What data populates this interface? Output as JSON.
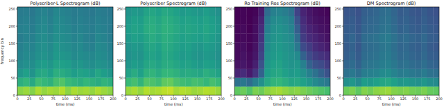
{
  "chart_data": [
    {
      "type": "heatmap",
      "title": "Polyscriber-L Spectrogram (dB)",
      "xlabel": "time (ms)",
      "ylabel": "frequency bin",
      "xlim": [
        0,
        200
      ],
      "ylim": [
        0,
        256
      ],
      "xticks": [
        0,
        25,
        50,
        75,
        100,
        125,
        150,
        175,
        200
      ],
      "yticks": [
        0,
        50,
        100,
        150,
        200,
        250
      ],
      "zlim": [
        -80,
        0
      ],
      "cells": [
        [
          -14,
          -12,
          -15,
          -10,
          -13,
          -11,
          -12,
          -9,
          -14,
          -10,
          -12,
          -11,
          -13,
          -10,
          -12,
          -14
        ],
        [
          -30,
          -27,
          -32,
          -25,
          -27,
          -29,
          -24,
          -22,
          -26,
          -28,
          -30,
          -27,
          -29,
          -31,
          -28,
          -30
        ],
        [
          -38,
          -35,
          -39,
          -33,
          -32,
          -35,
          -30,
          -31,
          -33,
          -36,
          -34,
          -35,
          -37,
          -33,
          -36,
          -38
        ],
        [
          -42,
          -40,
          -41,
          -37,
          -36,
          -38,
          -34,
          -35,
          -36,
          -39,
          -38,
          -40,
          -41,
          -39,
          -40,
          -42
        ],
        [
          -44,
          -42,
          -43,
          -40,
          -39,
          -41,
          -37,
          -38,
          -39,
          -42,
          -41,
          -42,
          -43,
          -41,
          -42,
          -44
        ],
        [
          -45,
          -43,
          -44,
          -41,
          -40,
          -42,
          -38,
          -40,
          -41,
          -43,
          -42,
          -44,
          -45,
          -42,
          -43,
          -45
        ],
        [
          -46,
          -44,
          -45,
          -42,
          -41,
          -43,
          -40,
          -41,
          -42,
          -44,
          -43,
          -45,
          -46,
          -43,
          -44,
          -46
        ],
        [
          -45,
          -44,
          -46,
          -43,
          -42,
          -44,
          -41,
          -42,
          -43,
          -45,
          -44,
          -45,
          -46,
          -44,
          -45,
          -47
        ],
        [
          -46,
          -45,
          -47,
          -44,
          -43,
          -45,
          -42,
          -43,
          -44,
          -46,
          -45,
          -46,
          -47,
          -45,
          -46,
          -47
        ],
        [
          -47,
          -46,
          -48,
          -45,
          -44,
          -46,
          -43,
          -44,
          -45,
          -47,
          -46,
          -47,
          -48,
          -46,
          -47,
          -48
        ]
      ]
    },
    {
      "type": "heatmap",
      "title": "Polyscriber Spectrogram (dB)",
      "xlabel": "time (ms)",
      "xlim": [
        0,
        200
      ],
      "ylim": [
        0,
        256
      ],
      "xticks": [
        0,
        25,
        50,
        75,
        100,
        125,
        150,
        175,
        200
      ],
      "yticks": [
        0,
        50,
        100,
        150,
        200,
        250
      ],
      "zlim": [
        -80,
        0
      ],
      "cells": [
        [
          -12,
          -10,
          -13,
          -9,
          -11,
          -10,
          -8,
          -7,
          -11,
          -9,
          -10,
          -12,
          -11,
          -9,
          -10,
          -12
        ],
        [
          -26,
          -24,
          -28,
          -22,
          -23,
          -25,
          -20,
          -19,
          -23,
          -25,
          -26,
          -24,
          -25,
          -27,
          -24,
          -26
        ],
        [
          -34,
          -31,
          -35,
          -29,
          -28,
          -31,
          -27,
          -27,
          -29,
          -32,
          -31,
          -32,
          -33,
          -30,
          -32,
          -34
        ],
        [
          -38,
          -36,
          -37,
          -33,
          -32,
          -34,
          -31,
          -31,
          -33,
          -35,
          -34,
          -36,
          -37,
          -35,
          -36,
          -38
        ],
        [
          -40,
          -38,
          -39,
          -35,
          -34,
          -36,
          -32,
          -33,
          -35,
          -37,
          -36,
          -38,
          -39,
          -37,
          -38,
          -40
        ],
        [
          -39,
          -37,
          -38,
          -34,
          -33,
          -35,
          -31,
          -32,
          -34,
          -36,
          -35,
          -37,
          -38,
          -36,
          -37,
          -39
        ],
        [
          -37,
          -35,
          -36,
          -33,
          -31,
          -33,
          -30,
          -31,
          -33,
          -35,
          -34,
          -35,
          -36,
          -34,
          -36,
          -38
        ],
        [
          -36,
          -34,
          -35,
          -31,
          -30,
          -32,
          -29,
          -30,
          -32,
          -34,
          -33,
          -34,
          -35,
          -33,
          -35,
          -37
        ],
        [
          -37,
          -35,
          -36,
          -32,
          -31,
          -33,
          -30,
          -31,
          -33,
          -35,
          -34,
          -35,
          -36,
          -34,
          -36,
          -38
        ],
        [
          -39,
          -37,
          -38,
          -34,
          -33,
          -35,
          -32,
          -33,
          -35,
          -37,
          -36,
          -37,
          -38,
          -36,
          -38,
          -40
        ]
      ]
    },
    {
      "type": "heatmap",
      "title": "Ro Training Ros Spectrogram (dB)",
      "xlabel": "time (ms)",
      "xlim": [
        0,
        200
      ],
      "ylim": [
        0,
        256
      ],
      "xticks": [
        0,
        25,
        50,
        75,
        100,
        125,
        150,
        175,
        200
      ],
      "yticks": [
        0,
        50,
        100,
        150,
        200,
        250
      ],
      "zlim": [
        -80,
        0
      ],
      "cells": [
        [
          -20,
          -18,
          -22,
          -16,
          -18,
          -14,
          -12,
          -11,
          -13,
          -15,
          -14,
          -16,
          -18,
          -20,
          -22,
          -24
        ],
        [
          -50,
          -48,
          -52,
          -45,
          -40,
          -32,
          -28,
          -27,
          -30,
          -33,
          -32,
          -35,
          -38,
          -42,
          -45,
          -48
        ],
        [
          -72,
          -70,
          -74,
          -68,
          -55,
          -36,
          -33,
          -32,
          -35,
          -37,
          -36,
          -40,
          -45,
          -50,
          -55,
          -60
        ],
        [
          -76,
          -75,
          -77,
          -73,
          -60,
          -38,
          -35,
          -34,
          -37,
          -39,
          -38,
          -45,
          -55,
          -60,
          -62,
          -66
        ],
        [
          -78,
          -76,
          -78,
          -75,
          -64,
          -40,
          -37,
          -36,
          -38,
          -40,
          -42,
          -55,
          -62,
          -66,
          -68,
          -70
        ],
        [
          -78,
          -77,
          -79,
          -76,
          -66,
          -42,
          -38,
          -37,
          -39,
          -41,
          -48,
          -62,
          -66,
          -70,
          -72,
          -74
        ],
        [
          -79,
          -78,
          -79,
          -77,
          -68,
          -43,
          -39,
          -38,
          -40,
          -42,
          -52,
          -66,
          -70,
          -72,
          -74,
          -76
        ],
        [
          -79,
          -78,
          -80,
          -77,
          -70,
          -45,
          -40,
          -39,
          -41,
          -44,
          -56,
          -68,
          -72,
          -74,
          -76,
          -77
        ],
        [
          -80,
          -79,
          -80,
          -78,
          -72,
          -48,
          -42,
          -41,
          -43,
          -46,
          -60,
          -70,
          -74,
          -76,
          -77,
          -78
        ],
        [
          -80,
          -79,
          -80,
          -79,
          -74,
          -52,
          -45,
          -44,
          -46,
          -50,
          -64,
          -72,
          -75,
          -77,
          -78,
          -79
        ]
      ]
    },
    {
      "type": "heatmap",
      "title": "DM Spectrogram (dB)",
      "xlabel": "time (ms)",
      "xlim": [
        0,
        200
      ],
      "ylim": [
        0,
        256
      ],
      "xticks": [
        0,
        25,
        50,
        75,
        100,
        125,
        150,
        175,
        200
      ],
      "yticks": [
        0,
        50,
        100,
        150,
        200,
        250
      ],
      "zlim": [
        -80,
        0
      ],
      "cells": [
        [
          -18,
          -16,
          -20,
          -15,
          -17,
          -14,
          -13,
          -12,
          -15,
          -16,
          -15,
          -17,
          -18,
          -16,
          -19,
          -20
        ],
        [
          -40,
          -38,
          -42,
          -36,
          -37,
          -35,
          -33,
          -32,
          -35,
          -38,
          -37,
          -39,
          -40,
          -38,
          -41,
          -42
        ],
        [
          -50,
          -48,
          -51,
          -46,
          -45,
          -44,
          -42,
          -41,
          -44,
          -47,
          -46,
          -48,
          -49,
          -47,
          -50,
          -51
        ],
        [
          -54,
          -52,
          -55,
          -50,
          -49,
          -48,
          -46,
          -45,
          -48,
          -51,
          -50,
          -52,
          -53,
          -51,
          -54,
          -55
        ],
        [
          -56,
          -54,
          -57,
          -52,
          -51,
          -50,
          -48,
          -47,
          -50,
          -53,
          -52,
          -54,
          -55,
          -53,
          -56,
          -57
        ],
        [
          -57,
          -55,
          -58,
          -53,
          -52,
          -51,
          -49,
          -48,
          -51,
          -54,
          -53,
          -55,
          -56,
          -54,
          -57,
          -58
        ],
        [
          -56,
          -54,
          -57,
          -52,
          -51,
          -50,
          -48,
          -47,
          -50,
          -53,
          -52,
          -54,
          -55,
          -53,
          -56,
          -57
        ],
        [
          -57,
          -56,
          -58,
          -54,
          -53,
          -52,
          -50,
          -49,
          -52,
          -55,
          -54,
          -56,
          -57,
          -55,
          -57,
          -58
        ],
        [
          -58,
          -57,
          -59,
          -55,
          -54,
          -53,
          -51,
          -50,
          -53,
          -56,
          -55,
          -57,
          -58,
          -56,
          -58,
          -59
        ],
        [
          -59,
          -58,
          -60,
          -56,
          -55,
          -54,
          -52,
          -51,
          -54,
          -57,
          -56,
          -58,
          -59,
          -57,
          -59,
          -60
        ]
      ]
    }
  ]
}
